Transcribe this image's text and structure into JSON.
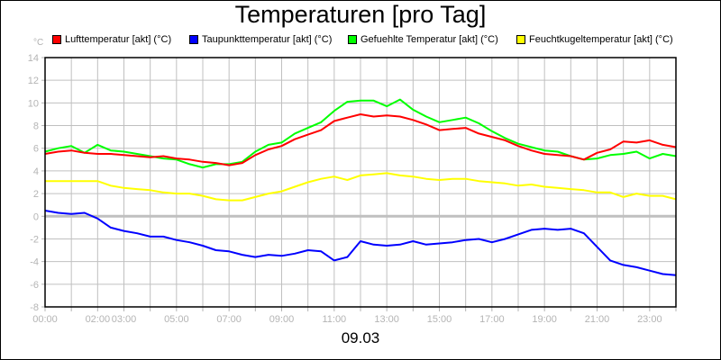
{
  "title": "Temperaturen [pro Tag]",
  "footer_label": "09.03",
  "unit_label": "°C",
  "legend": [
    {
      "label": "Lufttemperatur [akt] (°C)",
      "color": "#ff0000"
    },
    {
      "label": "Taupunkttemperatur [akt] (°C)",
      "color": "#0000ff"
    },
    {
      "label": "Gefuehlte Temperatur [akt] (°C)",
      "color": "#00ff00"
    },
    {
      "label": "Feuchtkugeltemperatur [akt] (°C)",
      "color": "#ffff00"
    }
  ],
  "chart_data": {
    "type": "line",
    "title": "Temperaturen [pro Tag]",
    "xlabel": "09.03",
    "ylabel": "°C",
    "xlim": [
      0,
      24
    ],
    "ylim": [
      -8,
      14
    ],
    "y_ticks": [
      14,
      12,
      10,
      8,
      6,
      4,
      2,
      0,
      -2,
      -4,
      -6,
      -8
    ],
    "x_tick_labels": [
      "00:00",
      "02:00",
      "03:00",
      "05:00",
      "07:00",
      "09:00",
      "11:00",
      "13:00",
      "15:00",
      "17:00",
      "19:00",
      "21:00",
      "23:00"
    ],
    "x_tick_hours": [
      0,
      2,
      3,
      5,
      7,
      9,
      11,
      13,
      15,
      17,
      19,
      21,
      23
    ],
    "grid": true,
    "legend_position": "top",
    "x_hours": [
      0,
      0.5,
      1,
      1.5,
      2,
      2.5,
      3,
      3.5,
      4,
      4.5,
      5,
      5.5,
      6,
      6.5,
      7,
      7.5,
      8,
      8.5,
      9,
      9.5,
      10,
      10.5,
      11,
      11.5,
      12,
      12.5,
      13,
      13.5,
      14,
      14.5,
      15,
      15.5,
      16,
      16.5,
      17,
      17.5,
      18,
      18.5,
      19,
      19.5,
      20,
      20.5,
      21,
      21.5,
      22,
      22.5,
      23,
      23.5,
      24
    ],
    "series": [
      {
        "name": "Lufttemperatur [akt] (°C)",
        "color": "#ff0000",
        "values": [
          5.5,
          5.7,
          5.8,
          5.6,
          5.5,
          5.5,
          5.4,
          5.3,
          5.2,
          5.3,
          5.1,
          5.0,
          4.8,
          4.7,
          4.5,
          4.7,
          5.4,
          5.9,
          6.2,
          6.8,
          7.2,
          7.6,
          8.4,
          8.7,
          9.0,
          8.8,
          8.9,
          8.8,
          8.5,
          8.1,
          7.6,
          7.7,
          7.8,
          7.3,
          7.0,
          6.7,
          6.2,
          5.8,
          5.5,
          5.4,
          5.3,
          5.0,
          5.6,
          5.9,
          6.6,
          6.5,
          6.7,
          6.3,
          6.1
        ]
      },
      {
        "name": "Taupunkttemperatur [akt] (°C)",
        "color": "#0000ff",
        "values": [
          0.5,
          0.3,
          0.2,
          0.3,
          -0.2,
          -1.0,
          -1.3,
          -1.5,
          -1.8,
          -1.8,
          -2.1,
          -2.3,
          -2.6,
          -3.0,
          -3.1,
          -3.4,
          -3.6,
          -3.4,
          -3.5,
          -3.3,
          -3.0,
          -3.1,
          -3.9,
          -3.6,
          -2.2,
          -2.5,
          -2.6,
          -2.5,
          -2.2,
          -2.5,
          -2.4,
          -2.3,
          -2.1,
          -2.0,
          -2.3,
          -2.0,
          -1.6,
          -1.2,
          -1.1,
          -1.2,
          -1.1,
          -1.5,
          -2.7,
          -3.9,
          -4.3,
          -4.5,
          -4.8,
          -5.1,
          -5.2
        ]
      },
      {
        "name": "Gefuehlte Temperatur [akt] (°C)",
        "color": "#00ff00",
        "values": [
          5.7,
          6.0,
          6.2,
          5.6,
          6.3,
          5.8,
          5.7,
          5.5,
          5.3,
          5.1,
          5.0,
          4.6,
          4.3,
          4.6,
          4.6,
          4.8,
          5.7,
          6.3,
          6.5,
          7.3,
          7.8,
          8.3,
          9.3,
          10.1,
          10.2,
          10.2,
          9.7,
          10.3,
          9.4,
          8.8,
          8.3,
          8.5,
          8.7,
          8.2,
          7.5,
          6.9,
          6.4,
          6.1,
          5.8,
          5.7,
          5.3,
          5.0,
          5.1,
          5.4,
          5.5,
          5.7,
          5.1,
          5.5,
          5.3
        ]
      },
      {
        "name": "Feuchtkugeltemperatur [akt] (°C)",
        "color": "#ffff00",
        "values": [
          3.1,
          3.1,
          3.1,
          3.1,
          3.1,
          2.7,
          2.5,
          2.4,
          2.3,
          2.1,
          2.0,
          2.0,
          1.8,
          1.5,
          1.4,
          1.4,
          1.7,
          2.0,
          2.2,
          2.6,
          3.0,
          3.3,
          3.5,
          3.2,
          3.6,
          3.7,
          3.8,
          3.6,
          3.5,
          3.3,
          3.2,
          3.3,
          3.3,
          3.1,
          3.0,
          2.9,
          2.7,
          2.8,
          2.6,
          2.5,
          2.4,
          2.3,
          2.1,
          2.1,
          1.7,
          2.0,
          1.8,
          1.8,
          1.5
        ]
      }
    ]
  }
}
